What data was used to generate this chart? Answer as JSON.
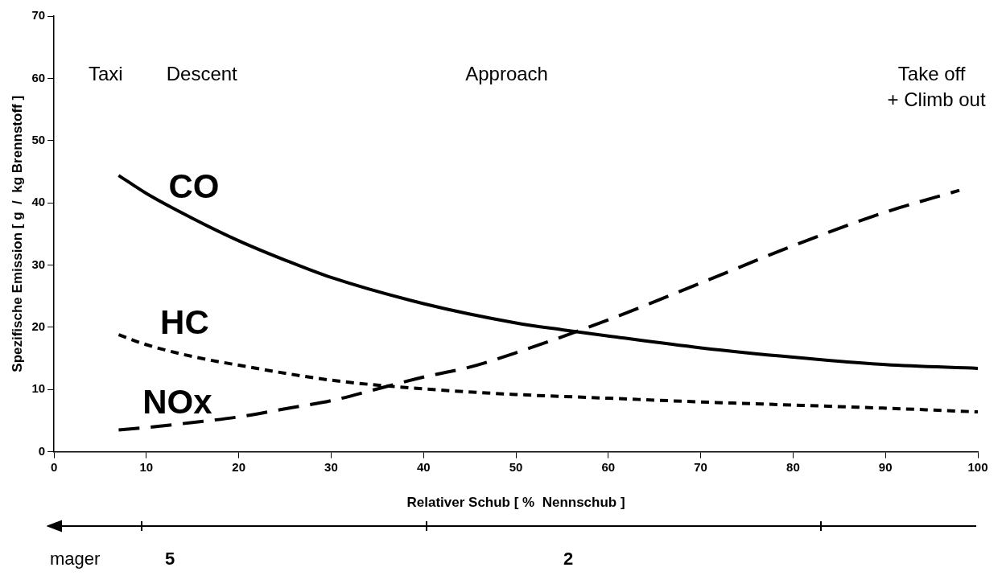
{
  "chart_data": {
    "type": "line",
    "xlabel": "Relativer Schub [ %  Nennschub ]",
    "ylabel": "Spezifische Emission [ g  /  kg Brennstoff ]",
    "xlim": [
      0,
      100
    ],
    "xticks": [
      0,
      10,
      20,
      30,
      40,
      50,
      60,
      70,
      80,
      90,
      100
    ],
    "ylim": [
      0,
      70
    ],
    "yticks": [
      0,
      10,
      20,
      30,
      40,
      50,
      60,
      70
    ],
    "grid": false,
    "legend": false,
    "marker": "none",
    "annotations": [
      "Taxi",
      "Descent",
      "Approach",
      "Take off\n+ Climb out",
      "mager",
      "5",
      "2"
    ],
    "series": [
      {
        "name": "CO",
        "color": "#000000",
        "line_style": "solid",
        "x": [
          7,
          10,
          15,
          20,
          25,
          30,
          40,
          50,
          55,
          60,
          70,
          80,
          90,
          100
        ],
        "values": [
          44.4,
          41.5,
          37.5,
          33.9,
          30.8,
          28.0,
          23.8,
          20.7,
          19.6,
          18.6,
          16.7,
          15.2,
          14.0,
          13.4
        ]
      },
      {
        "name": "HC",
        "color": "#000000",
        "line_style": "dotted",
        "x": [
          7,
          10,
          15,
          20,
          30,
          40,
          50,
          60,
          70,
          80,
          90,
          100
        ],
        "values": [
          18.8,
          17.2,
          15.3,
          13.9,
          11.5,
          10.1,
          9.2,
          8.6,
          8.0,
          7.5,
          7.0,
          6.4
        ]
      },
      {
        "name": "NOx",
        "color": "#000000",
        "line_style": "dashed",
        "x": [
          7,
          10,
          15,
          20,
          25,
          30,
          35,
          40,
          45,
          50,
          60,
          70,
          80,
          90,
          98
        ],
        "values": [
          3.5,
          3.9,
          4.7,
          5.6,
          6.9,
          8.2,
          10.1,
          12.0,
          13.6,
          15.9,
          21.2,
          27.1,
          33.1,
          38.5,
          42.0
        ]
      }
    ]
  }
}
